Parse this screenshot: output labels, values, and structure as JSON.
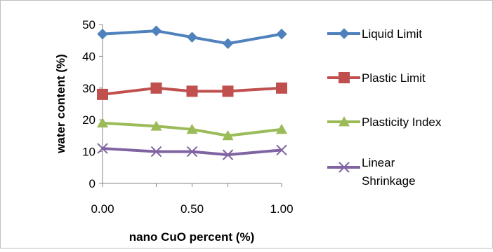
{
  "chart_data": {
    "type": "line",
    "title": "",
    "xlabel": "nano CuO percent (%)",
    "ylabel": "water content (%)",
    "x": [
      0.0,
      0.3,
      0.5,
      0.7,
      1.0
    ],
    "xlim": [
      0,
      1
    ],
    "ylim": [
      0,
      50
    ],
    "x_ticks": [
      "0.00",
      "0.50",
      "1.00"
    ],
    "x_tick_values": [
      0,
      0.5,
      1.0
    ],
    "y_ticks": [
      "0",
      "10",
      "20",
      "30",
      "40",
      "50"
    ],
    "y_tick_values": [
      0,
      10,
      20,
      30,
      40,
      50
    ],
    "grid": "none",
    "legend_position": "right",
    "series": [
      {
        "name": "Liquid Limit",
        "values": [
          47,
          48,
          46,
          44,
          47
        ],
        "color": "#4f81bd",
        "marker": "diamond"
      },
      {
        "name": "Plastic Limit",
        "values": [
          28,
          30,
          29,
          29,
          30
        ],
        "color": "#c0504d",
        "marker": "square"
      },
      {
        "name": "Plasticity Index",
        "values": [
          19,
          18,
          17,
          15,
          17
        ],
        "color": "#9bbb59",
        "marker": "triangle"
      },
      {
        "name": "Linear Shrinkage",
        "values": [
          11,
          10,
          10,
          9,
          10.5
        ],
        "color": "#8064a2",
        "marker": "x"
      }
    ],
    "legend_lines": [
      [
        "Liquid Limit"
      ],
      [
        "Plastic Limit"
      ],
      [
        "Plasticity Index"
      ],
      [
        "Linear",
        "Shrinkage"
      ]
    ]
  }
}
